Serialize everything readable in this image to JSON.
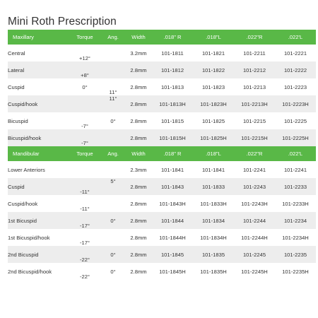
{
  "title": "Mini Roth Prescription",
  "maxillary": {
    "headers": [
      "Maxillary",
      "Torque",
      "Ang.",
      "Width",
      ".018\" R",
      ".018\"L",
      ".022\"R",
      ".022'L"
    ],
    "rows": [
      [
        "Central",
        "+12°",
        "",
        "3.2mm",
        "101-1811",
        "101-1821",
        "101-2211",
        "101-2221"
      ],
      [
        "Lateral",
        "+8°",
        "",
        "2.8mm",
        "101-1812",
        "101-1822",
        "101-2212",
        "101-2222"
      ],
      [
        "Cuspid",
        "0°",
        "11°",
        "2.8mm",
        "101-1813",
        "101-1823",
        "101-2213",
        "101-2223"
      ],
      [
        "Cuspid/hook",
        "",
        "11°",
        "2.8mm",
        "101-1813H",
        "101-1823H",
        "101-2213H",
        "101-2223H"
      ],
      [
        "Bicuspid",
        "-7°",
        "0°",
        "2.8mm",
        "101-1815",
        "101-1825",
        "101-2215",
        "101-2225"
      ],
      [
        "Bicuspid/hook",
        "-7°",
        "",
        "2.8mm",
        "101-1815H",
        "101-1825H",
        "101-2215H",
        "101-2225H"
      ]
    ]
  },
  "mandibular": {
    "headers": [
      "Mandibular",
      "Torque",
      "Ang.",
      "Width",
      ".018\" R",
      ".018\"L",
      ".022\"R",
      ".022'L"
    ],
    "rows": [
      [
        "Lower Anteriors",
        "",
        "",
        "2.3mm",
        "101-1841",
        "101-1841",
        "101-2241",
        "101-2241"
      ],
      [
        "Cuspid",
        "-11°",
        "5°",
        "2.8mm",
        "101-1843",
        "101-1833",
        "101-2243",
        "101-2233"
      ],
      [
        "Cuspid/hook",
        "-11°",
        "",
        "2.8mm",
        "101-1843H",
        "101-1833H",
        "101-2243H",
        "101-2233H"
      ],
      [
        "1st Bicuspid",
        "-17°",
        "0°",
        "2.8mm",
        "101-1844",
        "101-1834",
        "101-2244",
        "101-2234"
      ],
      [
        "1st Bicuspid/hook",
        "-17°",
        "",
        "2.8mm",
        "101-1844H",
        "101-1834H",
        "101-2244H",
        "101-2234H"
      ],
      [
        "2nd Bicuspid",
        "-22°",
        "0°",
        "2.8mm",
        "101-1845",
        "101-1835",
        "101-2245",
        "101-2235"
      ],
      [
        "2nd Bicuspid/hook",
        "-22°",
        "0°",
        "2.8mm",
        "101-1845H",
        "101-1835H",
        "101-2245H",
        "101-2235H"
      ]
    ]
  },
  "colors": {
    "header_green": "#59b847",
    "stripe_gray": "#ededed",
    "text": "#333333"
  }
}
